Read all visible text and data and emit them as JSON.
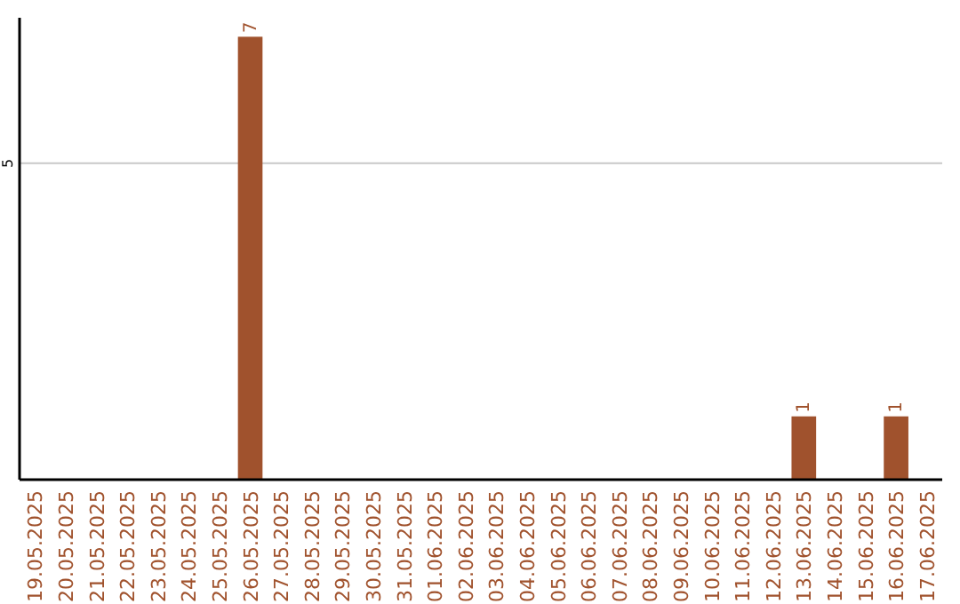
{
  "chart_data": {
    "type": "bar",
    "categories": [
      "19.05.2025",
      "20.05.2025",
      "21.05.2025",
      "22.05.2025",
      "23.05.2025",
      "24.05.2025",
      "25.05.2025",
      "26.05.2025",
      "27.05.2025",
      "28.05.2025",
      "29.05.2025",
      "30.05.2025",
      "31.05.2025",
      "01.06.2025",
      "02.06.2025",
      "03.06.2025",
      "04.06.2025",
      "05.06.2025",
      "06.06.2025",
      "07.06.2025",
      "08.06.2025",
      "09.06.2025",
      "10.06.2025",
      "11.06.2025",
      "12.06.2025",
      "13.06.2025",
      "14.06.2025",
      "15.06.2025",
      "16.06.2025",
      "17.06.2025"
    ],
    "values": [
      null,
      null,
      null,
      null,
      null,
      null,
      null,
      7,
      null,
      null,
      null,
      null,
      null,
      null,
      null,
      null,
      null,
      null,
      null,
      null,
      null,
      null,
      null,
      null,
      null,
      1,
      null,
      null,
      1,
      null
    ],
    "color": "#a0522d",
    "ylim": [
      0,
      7.3
    ],
    "yticks": [
      5
    ],
    "grid": "y",
    "data_labels": true
  }
}
